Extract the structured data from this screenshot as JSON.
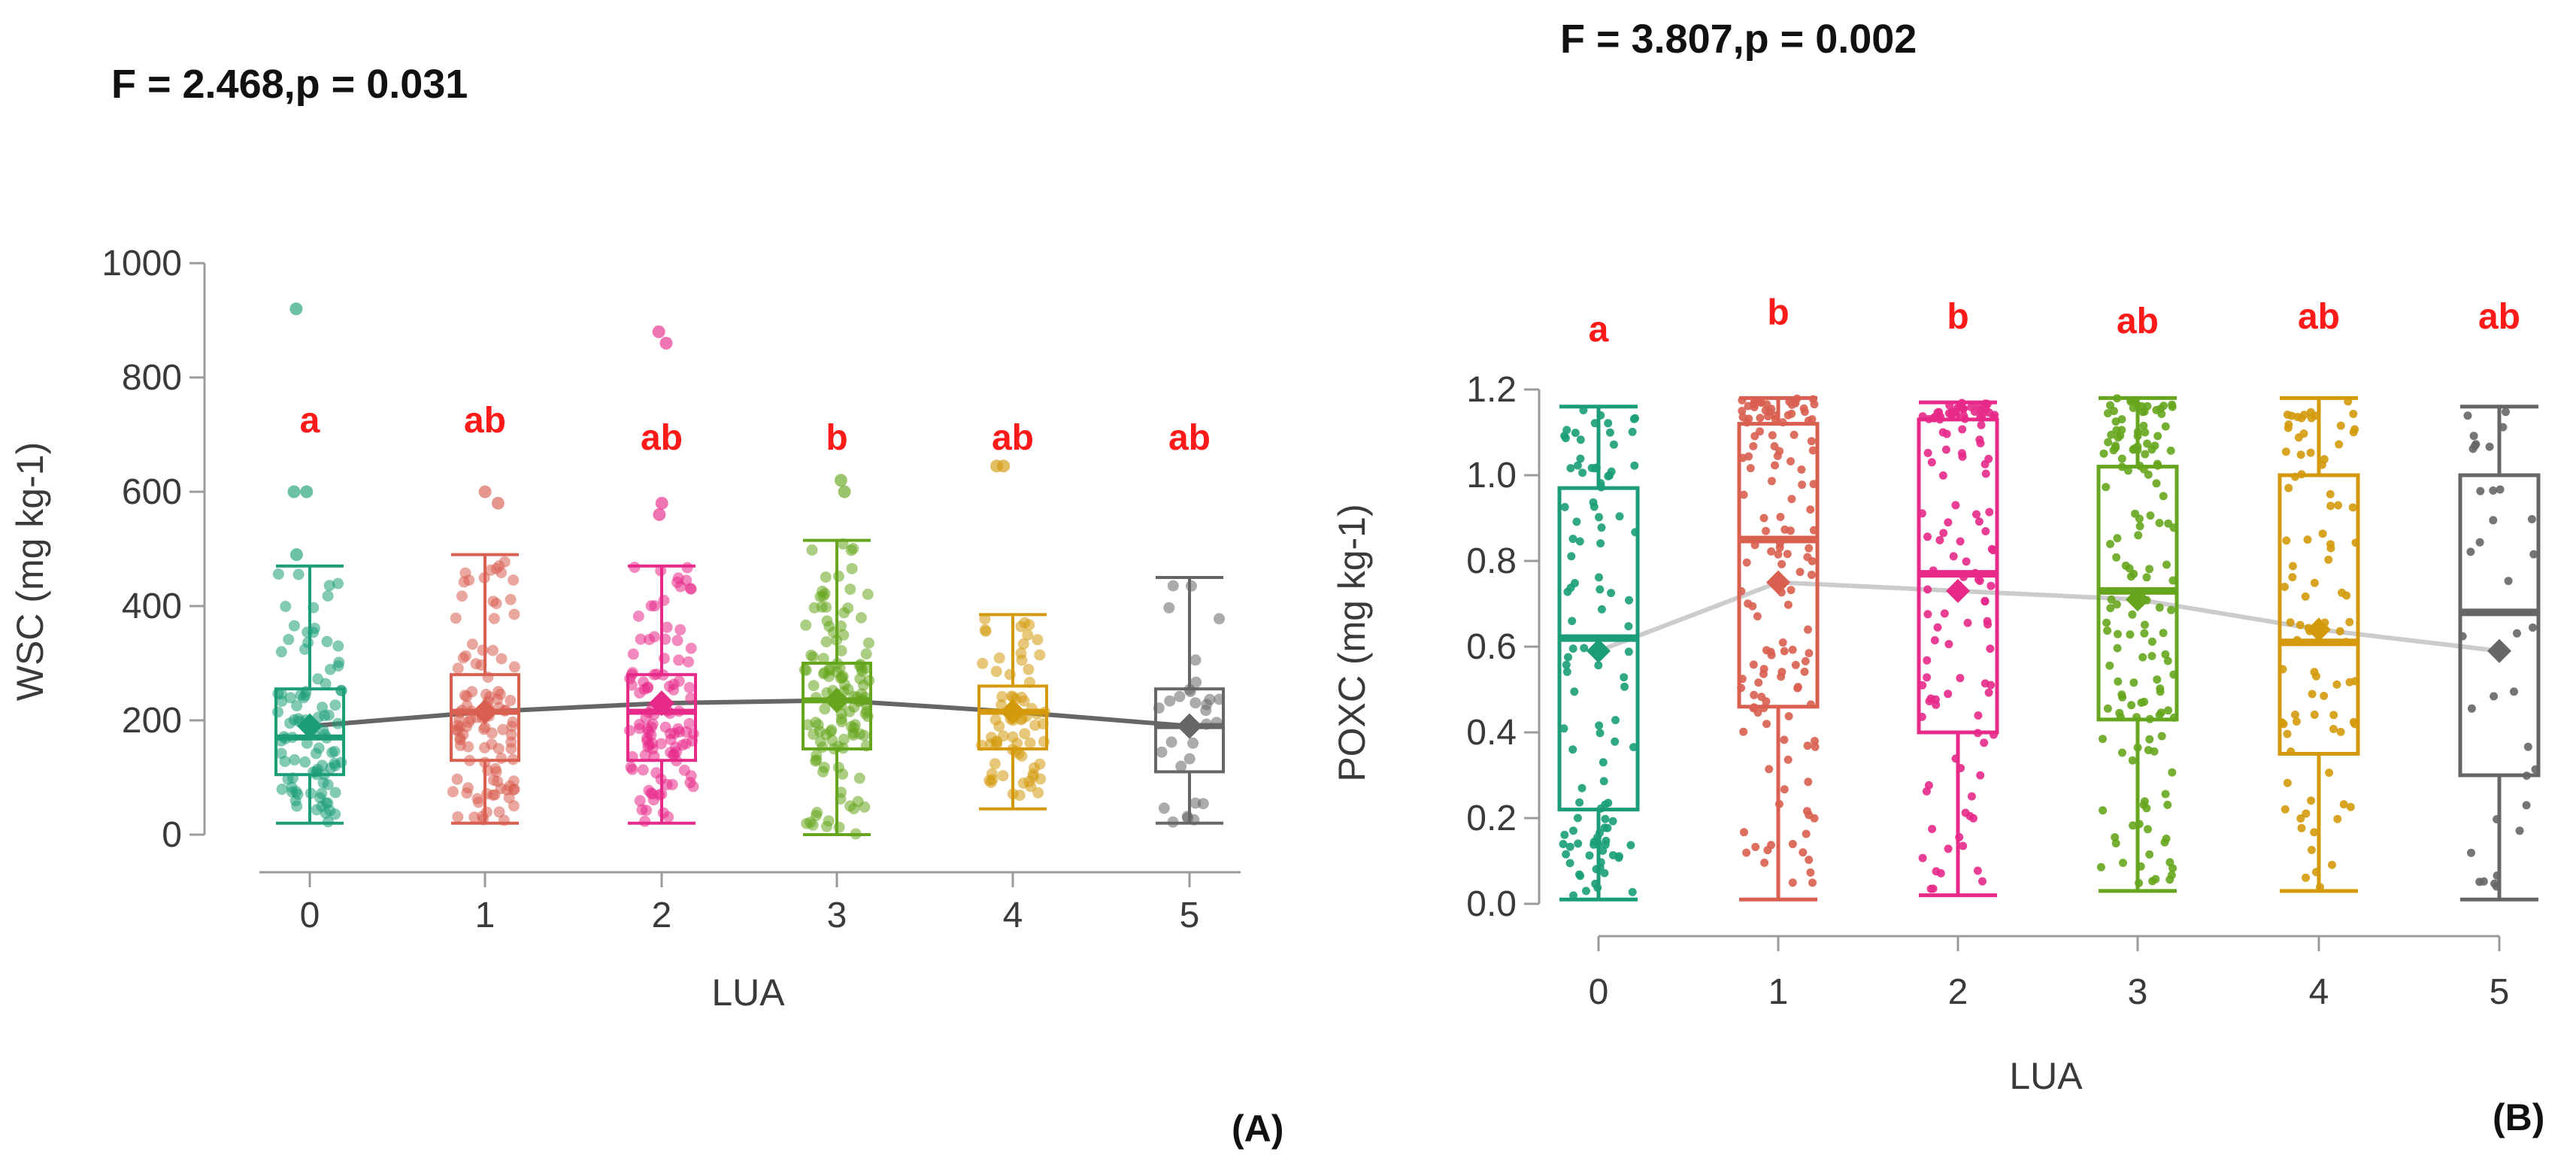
{
  "chart_data": [
    {
      "type": "box",
      "panel_label": "(A)",
      "stat_text": "F = 2.468,p = 0.031",
      "ylabel": "WSC (mg kg-1)",
      "xlabel": "LUA",
      "categories": [
        "0",
        "1",
        "2",
        "3",
        "4",
        "5"
      ],
      "ylim": [
        0,
        1000
      ],
      "yticks": [
        "0",
        "200",
        "400",
        "600",
        "800",
        "1000"
      ],
      "yticks_values": [
        0,
        200,
        400,
        600,
        800,
        1000
      ],
      "colors": [
        "#1b9e77",
        "#d95f50",
        "#e7298a",
        "#66a61e",
        "#d49a0c",
        "#666666"
      ],
      "letters": [
        "a",
        "ab",
        "ab",
        "b",
        "ab",
        "ab"
      ],
      "letter_y": [
        725,
        725,
        695,
        695,
        695,
        695
      ],
      "boxes": [
        {
          "min": 20,
          "q1": 105,
          "median": 170,
          "q3": 255,
          "max": 470,
          "mean": 190
        },
        {
          "min": 20,
          "q1": 130,
          "median": 215,
          "q3": 280,
          "max": 490,
          "mean": 215
        },
        {
          "min": 20,
          "q1": 130,
          "median": 215,
          "q3": 280,
          "max": 470,
          "mean": 230
        },
        {
          "min": 0,
          "q1": 150,
          "median": 235,
          "q3": 300,
          "max": 515,
          "mean": 235
        },
        {
          "min": 45,
          "q1": 150,
          "median": 215,
          "q3": 260,
          "max": 385,
          "mean": 215
        },
        {
          "min": 20,
          "q1": 110,
          "median": 190,
          "q3": 255,
          "max": 450,
          "mean": 190
        }
      ],
      "outliers": [
        [
          920,
          600,
          600,
          490
        ],
        [
          600,
          580
        ],
        [
          880,
          860,
          580,
          560
        ],
        [
          620,
          600
        ],
        [
          645,
          645
        ],
        []
      ],
      "point_counts": [
        95,
        110,
        110,
        125,
        70,
        30
      ]
    },
    {
      "type": "box",
      "panel_label": "(B)",
      "stat_text": "F = 3.807,p = 0.002",
      "ylabel": "POXC (mg kg-1)",
      "xlabel": "LUA",
      "categories": [
        "0",
        "1",
        "2",
        "3",
        "4",
        "5"
      ],
      "ylim": [
        0,
        1.2
      ],
      "yticks": [
        "0.0",
        "0.2",
        "0.4",
        "0.6",
        "0.8",
        "1.0",
        "1.2"
      ],
      "yticks_values": [
        0,
        0.2,
        0.4,
        0.6,
        0.8,
        1.0,
        1.2
      ],
      "colors": [
        "#1b9e77",
        "#d95f50",
        "#e7298a",
        "#66a61e",
        "#d49a0c",
        "#666666"
      ],
      "letters": [
        "a",
        "b",
        "b",
        "ab",
        "ab",
        "ab"
      ],
      "letter_y": [
        1.34,
        1.38,
        1.37,
        1.36,
        1.37,
        1.37
      ],
      "boxes": [
        {
          "min": 0.01,
          "q1": 0.22,
          "median": 0.62,
          "q3": 0.97,
          "max": 1.16,
          "mean": 0.59
        },
        {
          "min": 0.01,
          "q1": 0.46,
          "median": 0.85,
          "q3": 1.12,
          "max": 1.18,
          "mean": 0.75
        },
        {
          "min": 0.02,
          "q1": 0.4,
          "median": 0.77,
          "q3": 1.13,
          "max": 1.17,
          "mean": 0.73
        },
        {
          "min": 0.03,
          "q1": 0.43,
          "median": 0.73,
          "q3": 1.02,
          "max": 1.18,
          "mean": 0.71
        },
        {
          "min": 0.03,
          "q1": 0.35,
          "median": 0.61,
          "q3": 1.0,
          "max": 1.18,
          "mean": 0.64
        },
        {
          "min": 0.01,
          "q1": 0.3,
          "median": 0.68,
          "q3": 1.0,
          "max": 1.16,
          "mean": 0.59
        }
      ],
      "outliers": [
        [],
        [],
        [],
        [],
        [],
        []
      ],
      "point_counts": [
        110,
        140,
        120,
        150,
        90,
        35
      ]
    }
  ]
}
